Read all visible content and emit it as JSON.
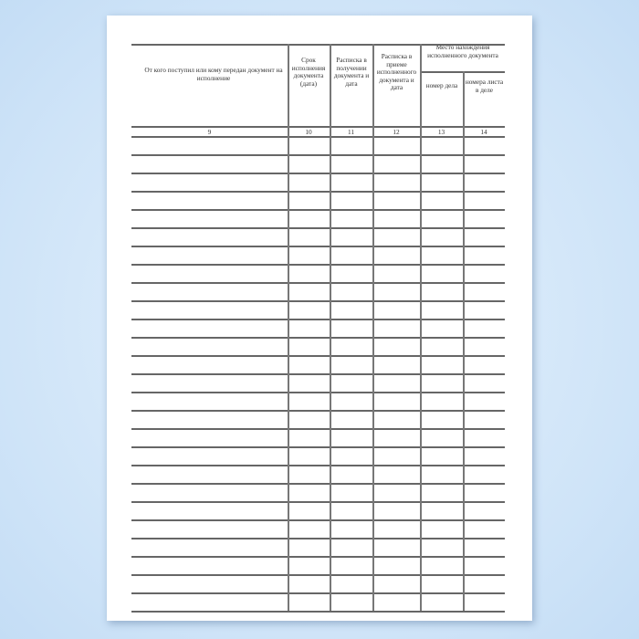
{
  "header": {
    "col9": "От кого поступил или кому передан документ на исполнение",
    "col10": "Срок исполнения документа (дата)",
    "col11": "Расписка в получении документа и дата",
    "col12": "Расписка в приеме исполненного документа и дата",
    "group": "Место нахождения исполненного документа",
    "col13": "номер дела",
    "col14": "номера листа в деле"
  },
  "numbers": [
    "9",
    "10",
    "11",
    "12",
    "13",
    "14"
  ],
  "row_count": 26
}
